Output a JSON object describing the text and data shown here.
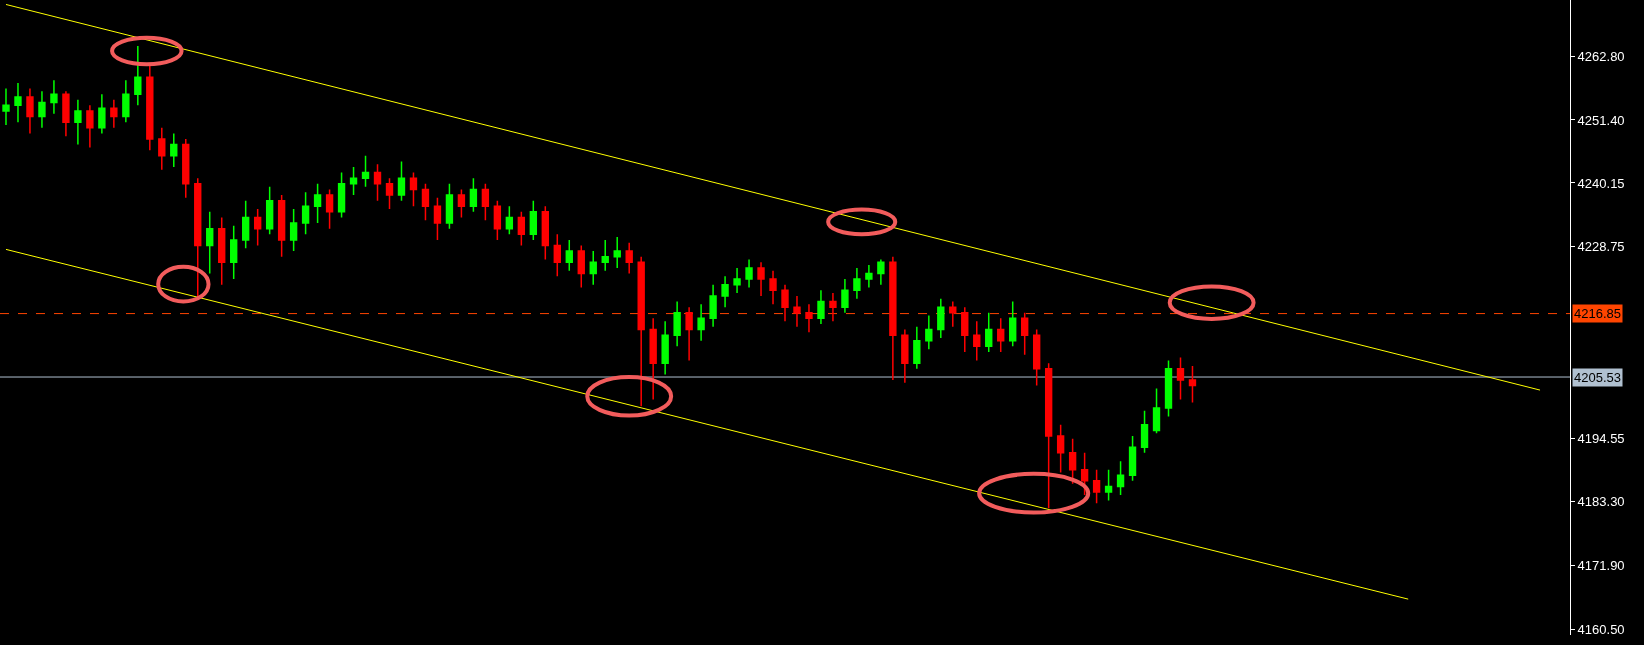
{
  "chart_data": {
    "type": "candlestick",
    "categories": [
      null,
      null,
      null,
      null,
      null,
      null,
      null,
      null,
      null,
      null,
      null,
      null,
      null,
      null,
      null,
      null,
      null,
      null,
      null,
      null,
      null,
      null,
      null,
      null,
      null,
      null,
      null,
      null,
      null,
      null,
      null,
      null,
      null,
      null,
      null,
      null,
      null,
      null,
      null,
      null,
      null,
      null,
      null,
      null,
      null,
      null,
      null,
      null,
      null,
      null,
      null,
      null,
      null,
      null,
      null,
      null,
      null,
      null,
      null,
      null,
      null,
      null,
      null,
      null,
      null,
      null,
      null,
      null,
      null,
      null,
      null,
      null,
      null,
      null,
      null,
      null,
      null,
      null,
      null,
      null,
      null,
      null,
      null,
      null,
      null,
      null,
      null,
      null,
      null,
      null,
      null,
      null,
      null,
      null,
      null,
      null,
      null,
      null,
      null,
      null,
      null,
      null,
      null,
      null,
      null,
      null,
      null,
      null,
      null,
      null,
      null,
      null,
      null,
      null,
      null,
      null,
      null,
      null,
      null,
      null,
      null,
      null,
      null,
      null,
      null,
      null,
      null,
      null,
      null,
      null,
      null
    ],
    "ohlc": [
      [
        4253,
        4257,
        4250.5,
        4254
      ],
      [
        4254,
        4258,
        4251,
        4255.5
      ],
      [
        4255.5,
        4257,
        4249,
        4252
      ],
      [
        4252,
        4256.5,
        4250,
        4254.5
      ],
      [
        4254.5,
        4258.5,
        4252.5,
        4256
      ],
      [
        4256,
        4256.5,
        4248.5,
        4251
      ],
      [
        4251,
        4255,
        4247,
        4253
      ],
      [
        4253,
        4254,
        4246.5,
        4250
      ],
      [
        4250,
        4256,
        4249,
        4253.5
      ],
      [
        4253.5,
        4255,
        4250,
        4252
      ],
      [
        4252,
        4258.5,
        4251,
        4256
      ],
      [
        4256,
        4264.6,
        4254,
        4259
      ],
      [
        4259,
        4261.5,
        4246,
        4248
      ],
      [
        4248,
        4250,
        4242.5,
        4245
      ],
      [
        4245,
        4249,
        4243,
        4247
      ],
      [
        4247,
        4248,
        4237.5,
        4240
      ],
      [
        4240,
        4241,
        4219.6,
        4229
      ],
      [
        4229,
        4235,
        4224,
        4232
      ],
      [
        4232,
        4234,
        4222,
        4226
      ],
      [
        4226,
        4232.5,
        4223,
        4230
      ],
      [
        4230,
        4237,
        4228.5,
        4234
      ],
      [
        4234,
        4235.5,
        4229,
        4232
      ],
      [
        4232,
        4239.5,
        4231,
        4237
      ],
      [
        4237,
        4238,
        4227,
        4230
      ],
      [
        4230,
        4235.5,
        4228,
        4233
      ],
      [
        4233,
        4238.5,
        4231,
        4236
      ],
      [
        4236,
        4240,
        4233,
        4238
      ],
      [
        4238,
        4239,
        4232,
        4235
      ],
      [
        4235,
        4242,
        4234,
        4240
      ],
      [
        4240,
        4243,
        4238,
        4241
      ],
      [
        4241,
        4245,
        4239.5,
        4242
      ],
      [
        4242,
        4243.5,
        4237,
        4240
      ],
      [
        4240,
        4241,
        4235.5,
        4238
      ],
      [
        4238,
        4244,
        4237,
        4241
      ],
      [
        4241,
        4242,
        4236,
        4239
      ],
      [
        4239,
        4240,
        4233.5,
        4236
      ],
      [
        4236,
        4237.5,
        4230,
        4233
      ],
      [
        4233,
        4240,
        4232,
        4238
      ],
      [
        4238,
        4239,
        4234,
        4236
      ],
      [
        4236,
        4241,
        4235,
        4239
      ],
      [
        4239,
        4240,
        4233.5,
        4236
      ],
      [
        4236,
        4237,
        4230,
        4232
      ],
      [
        4232,
        4236,
        4231,
        4234
      ],
      [
        4234,
        4235,
        4229,
        4231
      ],
      [
        4231,
        4237,
        4230,
        4235
      ],
      [
        4235,
        4236,
        4226.5,
        4229
      ],
      [
        4229,
        4231,
        4223.5,
        4226
      ],
      [
        4226,
        4230,
        4224.5,
        4228
      ],
      [
        4228,
        4229,
        4221.5,
        4224
      ],
      [
        4224,
        4228,
        4222,
        4226
      ],
      [
        4226,
        4230,
        4224.5,
        4227
      ],
      [
        4227,
        4230.5,
        4225,
        4228
      ],
      [
        4228,
        4229.5,
        4224,
        4226
      ],
      [
        4226,
        4227,
        4200.3,
        4214
      ],
      [
        4214,
        4216,
        4201.5,
        4208
      ],
      [
        4208,
        4215.5,
        4206,
        4213
      ],
      [
        4213,
        4219,
        4211,
        4217
      ],
      [
        4217,
        4218,
        4208.5,
        4214
      ],
      [
        4214,
        4218.5,
        4212,
        4216
      ],
      [
        4216,
        4222,
        4214.5,
        4220
      ],
      [
        4220,
        4223.5,
        4218,
        4222
      ],
      [
        4222,
        4225,
        4220.5,
        4223
      ],
      [
        4223,
        4226.5,
        4221.5,
        4225
      ],
      [
        4225,
        4226,
        4220,
        4223
      ],
      [
        4223,
        4224.5,
        4218.5,
        4221
      ],
      [
        4221,
        4222,
        4215.5,
        4218
      ],
      [
        4218,
        4220,
        4214.5,
        4217
      ],
      [
        4217,
        4218.5,
        4213.5,
        4216
      ],
      [
        4216,
        4221,
        4215,
        4219
      ],
      [
        4219,
        4220.5,
        4215.5,
        4218
      ],
      [
        4218,
        4223,
        4217,
        4221
      ],
      [
        4221,
        4225,
        4219.5,
        4223
      ],
      [
        4223,
        4225.5,
        4221.5,
        4224
      ],
      [
        4224,
        4226.5,
        4222,
        4226
      ],
      [
        4226,
        4227,
        4205,
        4213
      ],
      [
        4213,
        4214,
        4204.5,
        4208
      ],
      [
        4208,
        4214.5,
        4207,
        4212
      ],
      [
        4212,
        4216.5,
        4210.5,
        4214
      ],
      [
        4214,
        4219.5,
        4212.5,
        4218
      ],
      [
        4218,
        4219,
        4214.5,
        4217
      ],
      [
        4217,
        4218,
        4210,
        4213
      ],
      [
        4213,
        4215.5,
        4208.5,
        4211
      ],
      [
        4211,
        4217,
        4210,
        4214
      ],
      [
        4214,
        4216,
        4210,
        4212
      ],
      [
        4212,
        4219,
        4211,
        4216
      ],
      [
        4216,
        4217,
        4209.5,
        4213
      ],
      [
        4213,
        4214,
        4204,
        4207
      ],
      [
        4207,
        4208,
        4182.1,
        4195
      ],
      [
        4195,
        4197,
        4188.5,
        4192
      ],
      [
        4192,
        4194.5,
        4186.5,
        4189
      ],
      [
        4189,
        4192,
        4184.5,
        4187
      ],
      [
        4187,
        4189,
        4183,
        4185
      ],
      [
        4185,
        4189,
        4183.5,
        4186
      ],
      [
        4186,
        4190.5,
        4184.5,
        4188
      ],
      [
        4188,
        4195,
        4187,
        4193
      ],
      [
        4193,
        4199.5,
        4192,
        4197
      ],
      [
        4196,
        4203.5,
        4195.5,
        4200
      ],
      [
        4200,
        4208.5,
        4198.5,
        4207
      ],
      [
        4207,
        4209,
        4201.5,
        4205
      ],
      [
        4205,
        4207.5,
        4201,
        4204
      ],
      null,
      null,
      null,
      null,
      null,
      null,
      null,
      null,
      null,
      null,
      null,
      null,
      null,
      null,
      null,
      null,
      null,
      null,
      null,
      null,
      null,
      null,
      null,
      null,
      null,
      null,
      null,
      null,
      null,
      null,
      null
    ],
    "series": [
      {
        "type": "line",
        "color": "#ffff00",
        "values": [
          4272.0,
          null,
          null,
          null,
          null,
          null,
          null,
          null,
          null,
          null,
          null,
          null,
          null,
          null,
          null,
          null,
          null,
          null,
          null,
          null,
          null,
          null,
          null,
          null,
          null,
          null,
          null,
          null,
          null,
          null,
          null,
          null,
          null,
          null,
          null,
          null,
          null,
          null,
          null,
          null,
          null,
          null,
          null,
          null,
          null,
          null,
          null,
          null,
          null,
          null,
          null,
          null,
          null,
          null,
          null,
          null,
          null,
          null,
          null,
          null,
          null,
          null,
          null,
          null,
          null,
          null,
          null,
          null,
          null,
          null,
          null,
          null,
          null,
          null,
          null,
          null,
          null,
          null,
          null,
          null,
          null,
          null,
          null,
          null,
          null,
          null,
          null,
          null,
          null,
          null,
          null,
          null,
          null,
          null,
          null,
          null,
          null,
          null,
          null,
          null,
          null,
          null,
          null,
          null,
          null,
          null,
          null,
          null,
          null,
          null,
          null,
          null,
          null,
          null,
          null,
          null,
          null,
          null,
          null,
          null,
          null,
          null,
          null,
          null,
          null,
          null,
          null,
          null,
          4203.2,
          null,
          null
        ]
      },
      {
        "type": "line",
        "color": "#ffff00",
        "values": [
          4228.3,
          null,
          null,
          null,
          null,
          null,
          null,
          null,
          null,
          null,
          null,
          null,
          null,
          null,
          null,
          null,
          null,
          null,
          null,
          null,
          null,
          null,
          null,
          null,
          null,
          null,
          null,
          null,
          null,
          null,
          null,
          null,
          null,
          null,
          null,
          null,
          null,
          null,
          null,
          null,
          null,
          null,
          null,
          null,
          null,
          null,
          null,
          null,
          null,
          null,
          null,
          null,
          null,
          null,
          null,
          null,
          null,
          null,
          null,
          null,
          null,
          null,
          null,
          null,
          null,
          null,
          null,
          null,
          null,
          null,
          null,
          null,
          null,
          null,
          null,
          null,
          null,
          null,
          null,
          null,
          null,
          null,
          null,
          null,
          null,
          null,
          null,
          null,
          null,
          null,
          null,
          null,
          null,
          null,
          null,
          null,
          null,
          null,
          null,
          null,
          null,
          null,
          null,
          null,
          null,
          null,
          null,
          null,
          null,
          null,
          null,
          null,
          null,
          null,
          null,
          null,
          null,
          4165.9,
          null,
          null,
          null,
          null,
          null,
          null,
          null,
          null,
          null,
          null,
          null,
          null,
          null
        ]
      }
    ],
    "ylim": [
      4159.5,
      4272.8
    ],
    "yticks": [
      {
        "value": 4262.8,
        "label": "4262.80"
      },
      {
        "value": 4251.4,
        "label": "4251.40"
      },
      {
        "value": 4240.15,
        "label": "4240.15"
      },
      {
        "value": 4228.75,
        "label": "4228.75"
      },
      {
        "value": 4194.55,
        "label": "4194.55"
      },
      {
        "value": 4183.3,
        "label": "4183.30"
      },
      {
        "value": 4171.9,
        "label": "4171.90"
      },
      {
        "value": 4160.5,
        "label": "4160.50"
      }
    ],
    "ref_lines": [
      {
        "axis": "y",
        "value": 4216.85,
        "label": "4216.85",
        "color": "#ff4500",
        "line_style": "dashed"
      },
      {
        "axis": "y",
        "value": 4205.53,
        "label": "4205.53",
        "color": "#b0c0d0",
        "line_style": "solid"
      }
    ],
    "tick_labels": "y",
    "grid": false
  }
}
